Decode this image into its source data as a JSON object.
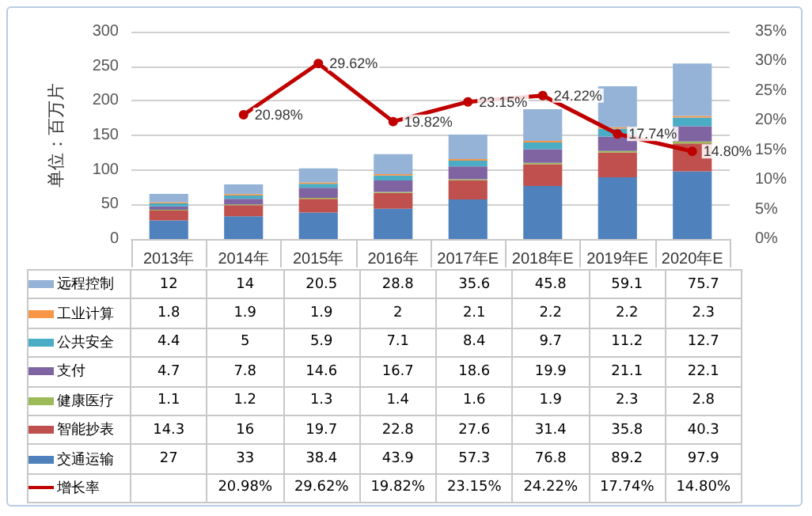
{
  "chart_data": {
    "type": "bar",
    "stacked": true,
    "ylabel": "单位：百万片",
    "categories": [
      "2013年",
      "2014年",
      "2015年",
      "2016年",
      "2017年E",
      "2018年E",
      "2019年E",
      "2020年E"
    ],
    "series": [
      {
        "name": "交通运输",
        "color": "#4f81bd",
        "values": [
          27,
          33,
          38.4,
          43.9,
          57.3,
          76.8,
          89.2,
          97.9
        ]
      },
      {
        "name": "智能抄表",
        "color": "#c0504d",
        "values": [
          14.3,
          16,
          19.7,
          22.8,
          27.6,
          31.4,
          35.8,
          40.3
        ]
      },
      {
        "name": "健康医疗",
        "color": "#9bbb59",
        "values": [
          1.1,
          1.2,
          1.3,
          1.4,
          1.6,
          1.9,
          2.3,
          2.8
        ]
      },
      {
        "name": "支付",
        "color": "#8064a2",
        "values": [
          4.7,
          7.8,
          14.6,
          16.7,
          18.6,
          19.9,
          21.1,
          22.1
        ]
      },
      {
        "name": "公共安全",
        "color": "#4bacc6",
        "values": [
          4.4,
          5,
          5.9,
          7.1,
          8.4,
          9.7,
          11.2,
          12.7
        ]
      },
      {
        "name": "工业计算",
        "color": "#f79646",
        "values": [
          1.8,
          1.9,
          1.9,
          2,
          2.1,
          2.2,
          2.2,
          2.3
        ]
      },
      {
        "name": "远程控制",
        "color": "#95b3d7",
        "values": [
          12,
          14,
          20.5,
          28.8,
          35.6,
          45.8,
          59.1,
          75.7
        ]
      },
      {
        "name": "增长率",
        "type": "line",
        "axis": "y2",
        "color": "#c00000",
        "marker": "circle",
        "values": [
          null,
          20.98,
          29.62,
          19.82,
          23.15,
          24.22,
          17.74,
          14.8
        ],
        "value_labels": [
          null,
          "20.98%",
          "29.62%",
          "19.82%",
          "23.15%",
          "24.22%",
          "17.74%",
          "14.80%"
        ]
      }
    ],
    "ylim": [
      0,
      300
    ],
    "yticks": [
      0,
      50,
      100,
      150,
      200,
      250,
      300
    ],
    "y2lim": [
      0,
      35
    ],
    "y2ticks": [
      {
        "value": 0,
        "label": "0%"
      },
      {
        "value": 5,
        "label": "5%"
      },
      {
        "value": 10,
        "label": "10%"
      },
      {
        "value": 15,
        "label": "15%"
      },
      {
        "value": 20,
        "label": "20%"
      },
      {
        "value": 25,
        "label": "25%"
      },
      {
        "value": 30,
        "label": "30%"
      },
      {
        "value": 35,
        "label": "35%"
      }
    ],
    "grid": "y",
    "legend": "bottom",
    "data_labels": true
  }
}
